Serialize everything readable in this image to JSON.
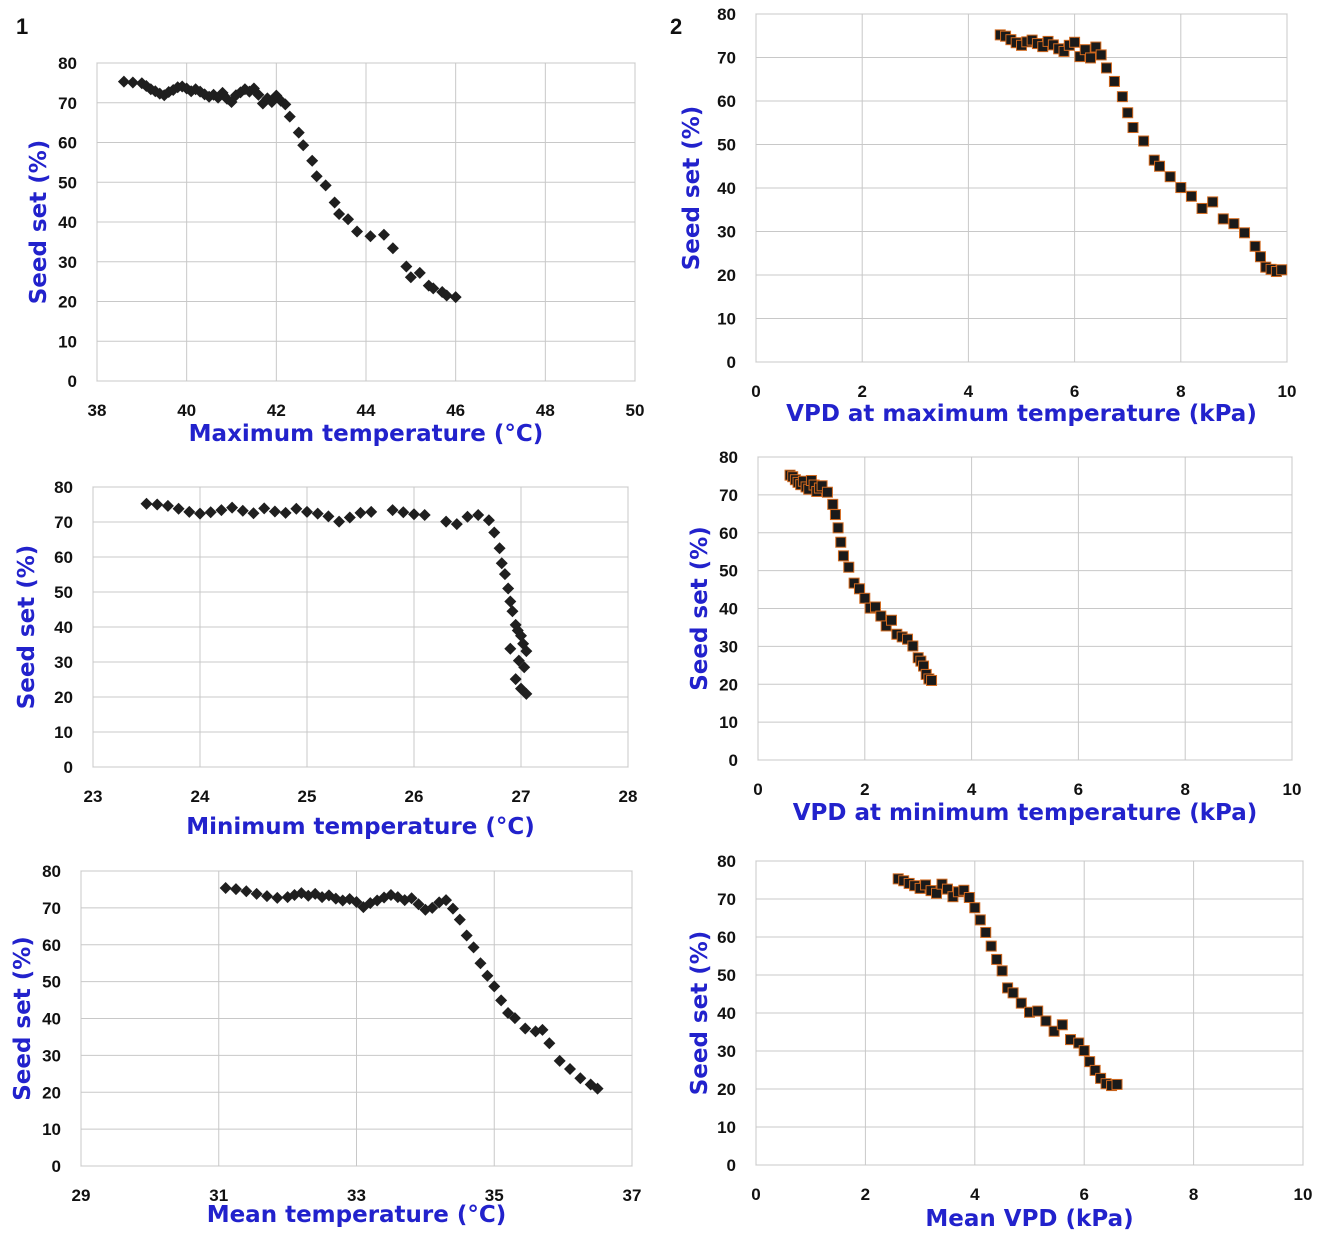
{
  "panel_labels": [
    "1",
    "2"
  ],
  "colors": {
    "axis_title": "#2222cc",
    "diamond_marker": "#1f1f1f",
    "square_marker": "#1a1a1a",
    "square_marker_edge": "#d2691e",
    "grid": "#c8c8c8"
  },
  "chart_data": [
    {
      "id": "max-temp",
      "type": "scatter",
      "marker": "diamond",
      "xlabel": "Maximum temperature (°C)",
      "ylabel": "Seed set (%)",
      "xlim": [
        38,
        50
      ],
      "ylim": [
        0,
        80
      ],
      "xticks": [
        38,
        40,
        42,
        44,
        46,
        48,
        50
      ],
      "yticks": [
        0,
        10,
        20,
        30,
        40,
        50,
        60,
        70,
        80
      ],
      "grid": true,
      "x": [
        38.6,
        38.8,
        39.0,
        39.1,
        39.2,
        39.3,
        39.4,
        39.5,
        39.6,
        39.7,
        39.8,
        39.9,
        40.0,
        40.1,
        40.2,
        40.3,
        40.4,
        40.5,
        40.6,
        40.7,
        40.8,
        40.9,
        41.0,
        41.1,
        41.2,
        41.3,
        41.4,
        41.5,
        41.6,
        41.7,
        41.8,
        41.9,
        42.0,
        42.1,
        42.2,
        42.3,
        42.5,
        42.6,
        42.8,
        42.9,
        43.1,
        43.3,
        43.4,
        43.6,
        43.8,
        44.1,
        44.4,
        44.6,
        44.9,
        45.0,
        45.2,
        45.4,
        45.5,
        45.7,
        45.8,
        46.0
      ],
      "y": [
        75.3,
        75.1,
        74.9,
        74.2,
        73.4,
        72.9,
        72.3,
        71.9,
        72.7,
        73.2,
        73.9,
        74.1,
        73.6,
        72.9,
        73.4,
        72.8,
        72.1,
        71.5,
        72.0,
        71.3,
        72.5,
        71.0,
        70.2,
        71.9,
        72.6,
        73.4,
        72.8,
        73.6,
        72.0,
        69.8,
        71.1,
        70.2,
        71.8,
        70.5,
        69.6,
        66.5,
        62.5,
        59.3,
        55.4,
        51.5,
        49.2,
        44.9,
        42.0,
        40.7,
        37.6,
        36.4,
        36.8,
        33.4,
        28.8,
        26.1,
        27.2,
        24.0,
        23.3,
        22.4,
        21.5,
        21.1
      ]
    },
    {
      "id": "min-temp",
      "type": "scatter",
      "marker": "diamond",
      "xlabel": "Minimum temperature (°C)",
      "ylabel": "Seed set (%)",
      "xlim": [
        23,
        28
      ],
      "ylim": [
        0,
        80
      ],
      "xticks": [
        23,
        24,
        25,
        26,
        27,
        28
      ],
      "yticks": [
        0,
        10,
        20,
        30,
        40,
        50,
        60,
        70,
        80
      ],
      "grid": true,
      "x": [
        23.5,
        23.6,
        23.7,
        23.8,
        23.9,
        24.0,
        24.1,
        24.2,
        24.3,
        24.4,
        24.5,
        24.6,
        24.7,
        24.8,
        24.9,
        25.0,
        25.1,
        25.2,
        25.3,
        25.4,
        25.5,
        25.6,
        25.8,
        25.9,
        26.0,
        26.1,
        26.3,
        26.4,
        26.5,
        26.6,
        26.7,
        26.75,
        26.8,
        26.82,
        26.85,
        26.88,
        26.9,
        26.92,
        26.95,
        26.97,
        27.0,
        27.02,
        27.05,
        26.98,
        26.9,
        27.03,
        26.95,
        27.0,
        27.05
      ],
      "y": [
        75.2,
        75.0,
        74.6,
        73.8,
        72.9,
        72.4,
        72.8,
        73.4,
        74.1,
        73.2,
        72.5,
        73.9,
        73.0,
        72.6,
        73.8,
        72.9,
        72.4,
        71.6,
        70.1,
        71.3,
        72.6,
        72.9,
        73.4,
        72.8,
        72.2,
        72.0,
        70.1,
        69.4,
        71.5,
        72.0,
        70.5,
        67.0,
        62.5,
        58.2,
        55.1,
        51.0,
        47.3,
        44.5,
        40.6,
        39.0,
        37.5,
        35.2,
        33.1,
        30.4,
        33.8,
        28.5,
        25.1,
        22.4,
        20.9
      ]
    },
    {
      "id": "mean-temp",
      "type": "scatter",
      "marker": "diamond",
      "xlabel": "Mean temperature (°C)",
      "ylabel": "Seed set (%)",
      "xlim": [
        29,
        37
      ],
      "ylim": [
        0,
        80
      ],
      "xticks": [
        29,
        31,
        33,
        35,
        37
      ],
      "yticks": [
        0,
        10,
        20,
        30,
        40,
        50,
        60,
        70,
        80
      ],
      "grid": true,
      "x": [
        31.1,
        31.25,
        31.4,
        31.55,
        31.7,
        31.85,
        32.0,
        32.1,
        32.2,
        32.3,
        32.4,
        32.5,
        32.6,
        32.7,
        32.8,
        32.9,
        33.0,
        33.1,
        33.2,
        33.3,
        33.4,
        33.5,
        33.6,
        33.7,
        33.8,
        33.9,
        34.0,
        34.1,
        34.2,
        34.3,
        34.4,
        34.5,
        34.6,
        34.7,
        34.8,
        34.9,
        35.0,
        35.1,
        35.2,
        35.3,
        35.45,
        35.6,
        35.7,
        35.8,
        35.95,
        36.1,
        36.25,
        36.4,
        36.5
      ],
      "y": [
        75.4,
        75.1,
        74.5,
        73.8,
        73.2,
        72.7,
        72.9,
        73.5,
        74.0,
        73.3,
        73.8,
        72.9,
        73.4,
        72.5,
        72.0,
        72.4,
        71.6,
        70.2,
        71.3,
        72.0,
        72.8,
        73.5,
        72.9,
        72.1,
        72.6,
        71.0,
        69.5,
        70.0,
        71.5,
        72.1,
        69.8,
        66.8,
        62.5,
        59.3,
        55.0,
        51.6,
        48.7,
        44.9,
        41.5,
        40.1,
        37.3,
        36.5,
        36.9,
        33.3,
        28.5,
        26.3,
        23.8,
        22.1,
        21.0
      ]
    },
    {
      "id": "vpd-max",
      "type": "scatter",
      "marker": "square",
      "xlabel": "VPD at maximum temperature (kPa)",
      "ylabel": "Seed set (%)",
      "xlim": [
        0,
        10
      ],
      "ylim": [
        0,
        80
      ],
      "xticks": [
        0,
        2,
        4,
        6,
        8,
        10
      ],
      "yticks": [
        0,
        10,
        20,
        30,
        40,
        50,
        60,
        70,
        80
      ],
      "grid": true,
      "x": [
        4.6,
        4.7,
        4.8,
        4.9,
        5.0,
        5.1,
        5.2,
        5.3,
        5.4,
        5.5,
        5.6,
        5.7,
        5.8,
        5.9,
        6.0,
        6.1,
        6.2,
        6.3,
        6.4,
        6.5,
        6.6,
        6.75,
        6.9,
        7.0,
        7.1,
        7.3,
        7.5,
        7.6,
        7.8,
        8.0,
        8.2,
        8.4,
        8.6,
        8.8,
        9.0,
        9.2,
        9.4,
        9.5,
        9.6,
        9.7,
        9.8,
        9.9
      ],
      "y": [
        75.2,
        74.9,
        74.1,
        73.4,
        72.8,
        73.6,
        74.0,
        73.2,
        72.5,
        73.7,
        72.9,
        72.0,
        71.4,
        72.8,
        73.5,
        70.2,
        71.8,
        69.9,
        72.4,
        70.6,
        67.6,
        64.5,
        61.0,
        57.3,
        53.9,
        50.8,
        46.4,
        45.0,
        42.6,
        40.1,
        38.1,
        35.3,
        36.8,
        32.9,
        31.8,
        29.7,
        26.6,
        24.2,
        21.8,
        21.3,
        20.8,
        21.2
      ]
    },
    {
      "id": "vpd-min",
      "type": "scatter",
      "marker": "square",
      "xlabel": "VPD at minimum temperature (kPa)",
      "ylabel": "Seed set (%)",
      "xlim": [
        0,
        10
      ],
      "ylim": [
        0,
        80
      ],
      "xticks": [
        0,
        2,
        4,
        6,
        8,
        10
      ],
      "yticks": [
        0,
        10,
        20,
        30,
        40,
        50,
        60,
        70,
        80
      ],
      "grid": true,
      "x": [
        0.6,
        0.65,
        0.7,
        0.75,
        0.8,
        0.85,
        0.9,
        0.95,
        1.0,
        1.05,
        1.1,
        1.15,
        1.2,
        1.3,
        1.4,
        1.45,
        1.5,
        1.55,
        1.6,
        1.7,
        1.8,
        1.9,
        2.0,
        2.1,
        2.2,
        2.3,
        2.4,
        2.5,
        2.6,
        2.7,
        2.8,
        2.9,
        3.0,
        3.05,
        3.1,
        3.15,
        3.2,
        3.25
      ],
      "y": [
        75.2,
        74.8,
        74.0,
        73.3,
        72.7,
        73.6,
        72.1,
        71.5,
        73.8,
        72.6,
        70.9,
        71.8,
        72.4,
        70.7,
        67.5,
        64.8,
        61.3,
        57.5,
        53.9,
        50.9,
        46.7,
        45.2,
        42.7,
        40.1,
        40.4,
        38.0,
        35.4,
        36.9,
        33.2,
        32.5,
        31.9,
        30.1,
        27.0,
        26.1,
        24.8,
        22.6,
        21.4,
        21.0
      ]
    },
    {
      "id": "vpd-mean",
      "type": "scatter",
      "marker": "square",
      "xlabel": "Mean VPD (kPa)",
      "ylabel": "Seed set (%)",
      "xlim": [
        0,
        10
      ],
      "ylim": [
        0,
        80
      ],
      "xticks": [
        0,
        2,
        4,
        6,
        8,
        10
      ],
      "yticks": [
        0,
        10,
        20,
        30,
        40,
        50,
        60,
        70,
        80
      ],
      "grid": true,
      "x": [
        2.6,
        2.7,
        2.8,
        2.9,
        3.0,
        3.1,
        3.2,
        3.3,
        3.4,
        3.5,
        3.6,
        3.7,
        3.8,
        3.9,
        4.0,
        4.1,
        4.2,
        4.3,
        4.4,
        4.5,
        4.6,
        4.7,
        4.85,
        5.0,
        5.15,
        5.3,
        5.45,
        5.6,
        5.75,
        5.9,
        6.0,
        6.1,
        6.2,
        6.3,
        6.4,
        6.5,
        6.6
      ],
      "y": [
        75.3,
        74.8,
        74.1,
        73.5,
        72.8,
        73.7,
        72.2,
        71.5,
        73.9,
        72.6,
        70.6,
        71.9,
        72.3,
        70.4,
        67.7,
        64.5,
        61.2,
        57.6,
        54.1,
        51.1,
        46.6,
        45.3,
        42.6,
        40.2,
        40.5,
        37.9,
        35.2,
        36.9,
        33.0,
        32.1,
        30.1,
        27.2,
        24.9,
        22.8,
        21.4,
        20.9,
        21.2
      ]
    }
  ]
}
